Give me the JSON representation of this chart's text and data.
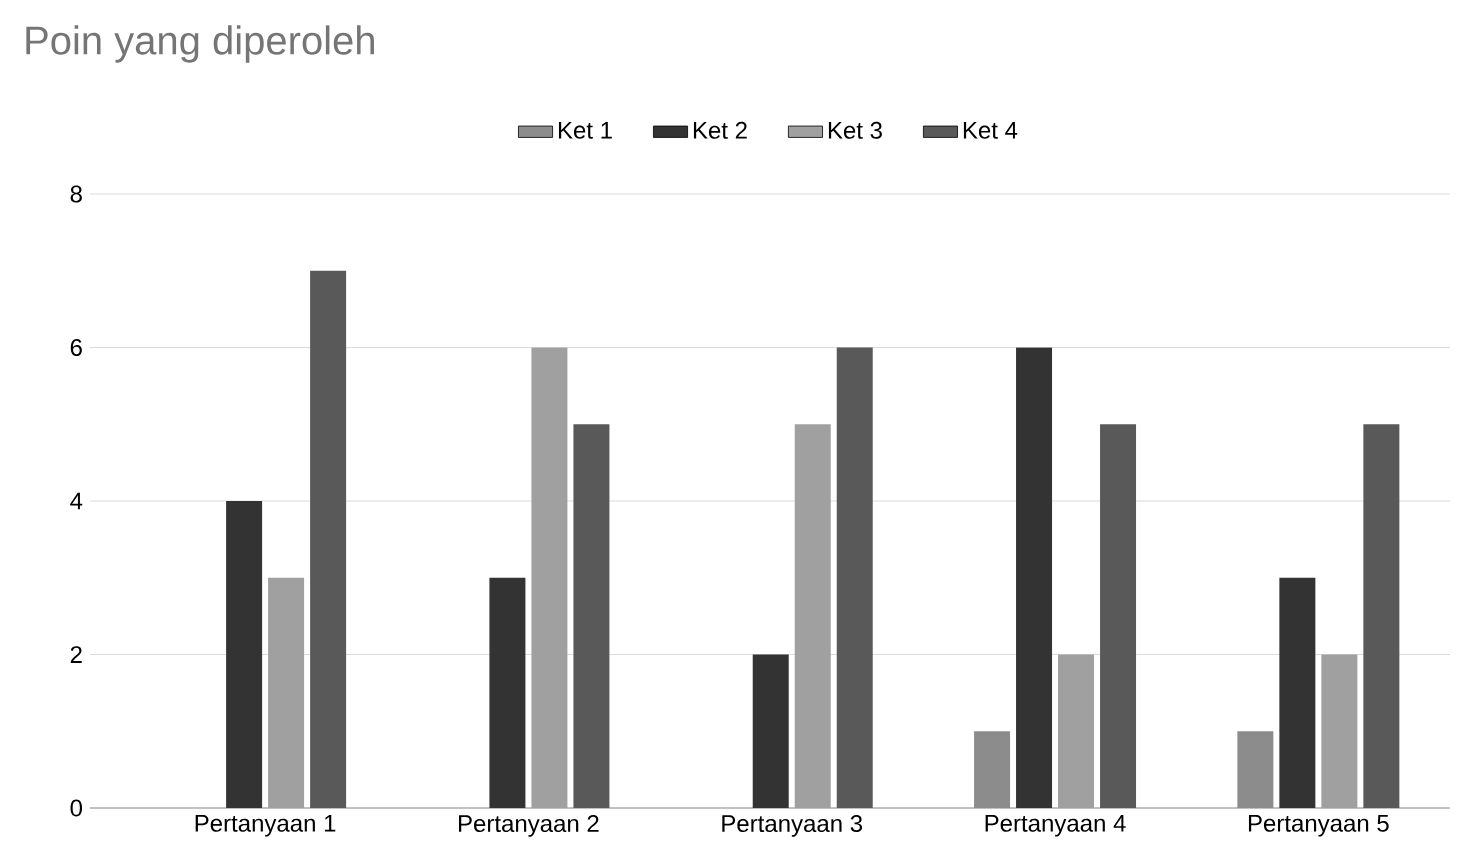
{
  "chart_data": {
    "type": "bar",
    "title": "Poin yang diperoleh",
    "categories": [
      "Pertanyaan 1",
      "Pertanyaan 2",
      "Pertanyaan 3",
      "Pertanyaan 4",
      "Pertanyaan 5"
    ],
    "series": [
      {
        "name": "Ket 1",
        "color": "#8c8c8c",
        "values": [
          0,
          0,
          0,
          1,
          1
        ]
      },
      {
        "name": "Ket 2",
        "color": "#333333",
        "values": [
          4,
          3,
          2,
          6,
          3
        ]
      },
      {
        "name": "Ket 3",
        "color": "#a0a0a0",
        "values": [
          3,
          6,
          5,
          2,
          2
        ]
      },
      {
        "name": "Ket 4",
        "color": "#595959",
        "values": [
          7,
          5,
          6,
          5,
          5
        ]
      }
    ],
    "ylim": [
      0,
      8
    ],
    "yticks": [
      0,
      2,
      4,
      6,
      8
    ],
    "grid": "y",
    "legend": "top"
  }
}
